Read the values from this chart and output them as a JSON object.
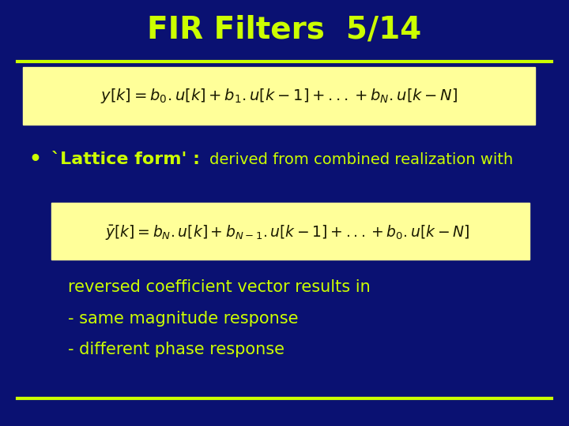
{
  "background_color": "#0a1172",
  "title": "FIR Filters  5/14",
  "title_color": "#ccff00",
  "title_fontsize": 28,
  "line_color": "#ccff00",
  "eq1_box_color": "#ffff99",
  "bullet_color": "#ccff00",
  "eq2_box_color": "#ffff99",
  "text_lines": [
    "reversed coefficient vector results in",
    "- same magnitude response",
    "- different phase response"
  ],
  "text_color": "#ccff00",
  "text_fontsize": 15
}
